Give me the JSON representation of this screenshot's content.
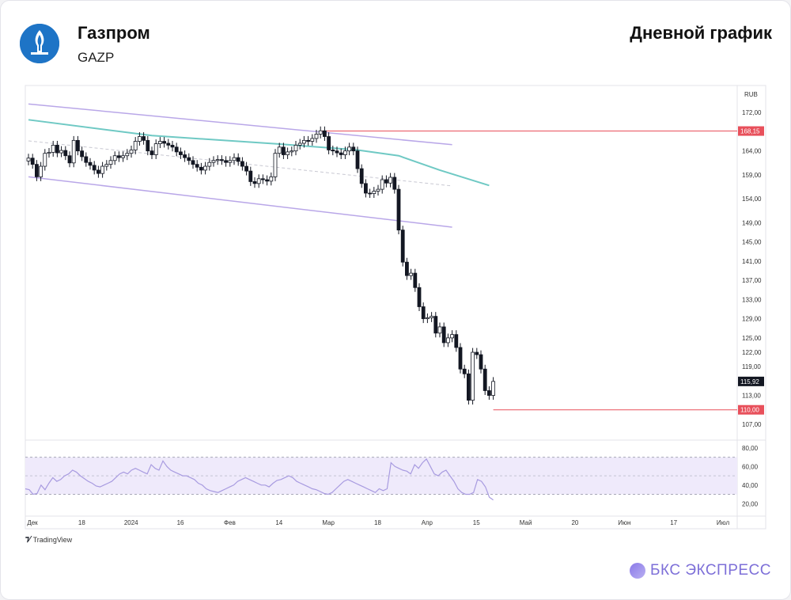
{
  "header": {
    "company": "Газпром",
    "ticker": "GAZP",
    "chart_title": "Дневной график"
  },
  "footer": {
    "source": "TradingView",
    "brand": "БКС ЭКСПРЕСС"
  },
  "colors": {
    "channel": "#b9a7e8",
    "ma": "#6fc9c4",
    "resistance": "#e8505b",
    "rsi_line": "#a89be0",
    "rsi_band": "#efeafb",
    "logo": "#1e74c6",
    "brand": "#7d6fd8"
  },
  "chart_data": [
    {
      "type": "candlestick",
      "y_unit": "RUB",
      "ylim": [
        105,
        176
      ],
      "y_ticks": [
        "172,00",
        "168,00",
        "164,00",
        "159,00",
        "154,00",
        "149,00",
        "145,00",
        "141,00",
        "137,00",
        "133,00",
        "129,00",
        "125,00",
        "122,00",
        "119,00",
        "115,92",
        "113,00",
        "110,00",
        "107,00"
      ],
      "x_ticks": [
        "Дек",
        "18",
        "2024",
        "16",
        "Фев",
        "14",
        "Мар",
        "18",
        "Апр",
        "15",
        "Май",
        "20",
        "Июн",
        "17",
        "Июл"
      ],
      "price_labels": {
        "resistance": "168,15",
        "last": "115,92",
        "low": "110,00"
      },
      "levels": {
        "resistance": 168.15,
        "last": 115.92,
        "low": 110.0
      },
      "closes": [
        162.5,
        161.2,
        158.6,
        160.8,
        163.5,
        163.7,
        165.2,
        163.6,
        164.1,
        163.0,
        161.5,
        166.2,
        164.0,
        162.8,
        161.6,
        161.0,
        160.0,
        159.3,
        160.8,
        161.2,
        162.0,
        163.0,
        162.6,
        163.0,
        163.5,
        164.2,
        166.0,
        167.0,
        166.2,
        164.0,
        163.2,
        165.5,
        166.0,
        165.6,
        165.2,
        164.8,
        163.8,
        163.2,
        162.6,
        162.0,
        161.2,
        160.6,
        160.0,
        160.8,
        161.6,
        162.0,
        162.2,
        162.0,
        161.6,
        162.0,
        162.6,
        161.8,
        160.8,
        159.8,
        157.6,
        157.2,
        158.2,
        158.0,
        157.7,
        158.6,
        163.5,
        164.8,
        163.2,
        163.8,
        164.0,
        165.2,
        165.6,
        166.2,
        166.0,
        166.6,
        167.5,
        168.2,
        167.0,
        164.2,
        164.0,
        163.6,
        163.2,
        164.0,
        164.8,
        164.0,
        160.3,
        157.2,
        155.2,
        155.1,
        155.6,
        156.0,
        158.0,
        157.3,
        158.5,
        156.0,
        147.5,
        140.8,
        138.0,
        138.5,
        135.5,
        131.5,
        129.0,
        129.2,
        129.5,
        126.0,
        127.3,
        124.0,
        125.0,
        125.7,
        123.0,
        118.5,
        117.5,
        112.0,
        122.0,
        121.5,
        118.5,
        114.0,
        113.0,
        115.92
      ],
      "moving_average": [
        {
          "x_index": 0,
          "y": 170.5
        },
        {
          "x_index": 30,
          "y": 167.2
        },
        {
          "x_index": 60,
          "y": 165.5
        },
        {
          "x_index": 80,
          "y": 164.2
        },
        {
          "x_index": 90,
          "y": 163.0
        },
        {
          "x_index": 100,
          "y": 160.0
        },
        {
          "x_index": 112,
          "y": 156.8
        }
      ],
      "channel": {
        "upper": [
          {
            "x_index": 0,
            "y": 173.8
          },
          {
            "x_index": 103,
            "y": 165.3
          }
        ],
        "middle": [
          {
            "x_index": 0,
            "y": 166.1
          },
          {
            "x_index": 103,
            "y": 156.7
          }
        ],
        "lower": [
          {
            "x_index": 0,
            "y": 158.6
          },
          {
            "x_index": 103,
            "y": 148.1
          }
        ]
      }
    },
    {
      "type": "line",
      "name": "RSI",
      "ylim": [
        10,
        85
      ],
      "y_ticks": [
        "80,00",
        "60,00",
        "40,00",
        "20,00"
      ],
      "band": [
        30,
        70
      ],
      "midline": 50,
      "values": [
        36,
        35,
        30,
        31,
        40,
        35,
        42,
        48,
        44,
        46,
        50,
        52,
        56,
        54,
        50,
        47,
        44,
        42,
        39,
        38,
        40,
        42,
        44,
        48,
        52,
        54,
        52,
        56,
        58,
        56,
        54,
        52,
        62,
        58,
        56,
        66,
        60,
        56,
        54,
        52,
        50,
        50,
        48,
        46,
        42,
        40,
        36,
        34,
        33,
        32,
        34,
        36,
        38,
        40,
        44,
        46,
        48,
        46,
        44,
        42,
        40,
        40,
        38,
        42,
        45,
        46,
        48,
        50,
        48,
        44,
        42,
        40,
        38,
        36,
        35,
        33,
        31,
        30,
        32,
        36,
        40,
        44,
        46,
        44,
        42,
        40,
        38,
        36,
        34,
        32,
        36,
        34,
        36,
        64,
        60,
        58,
        56,
        55,
        52,
        62,
        58,
        64,
        68,
        60,
        52,
        50,
        54,
        56,
        50,
        44,
        36,
        32,
        30,
        30,
        32,
        46,
        44,
        38,
        27,
        24
      ]
    }
  ]
}
